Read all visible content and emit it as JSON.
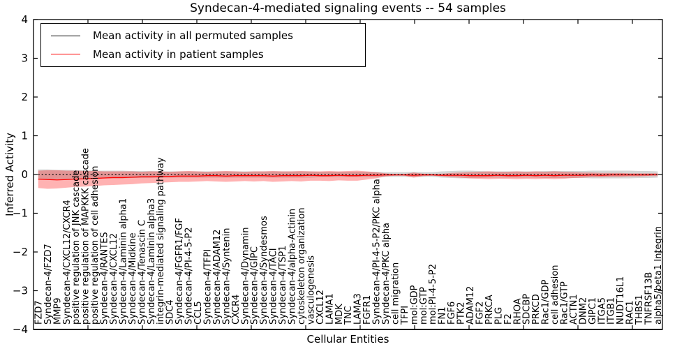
{
  "chart_data": {
    "type": "line",
    "title": "Syndecan-4-mediated signaling events -- 54 samples",
    "xlabel": "Cellular Entities",
    "ylabel": "Inferred Activity",
    "ylim": [
      -4,
      4
    ],
    "yticks": [
      -4,
      -3,
      -2,
      -1,
      0,
      1,
      2,
      3,
      4
    ],
    "grid": false,
    "legend_position": "upper left",
    "categories": [
      "FZD7",
      "Syndecan-4/FZD7",
      "MMP9",
      "Syndecan-4/CXCL12/CXCR4",
      "positive regulation of JNK cascade",
      "positive regulation of MAPKKK cascade",
      "positive regulation of cell adhesion",
      "Syndecan-4/RANTES",
      "Syndecan-4/CXCL12",
      "Syndecan-4/Laminin alpha1",
      "Syndecan-4/Midkine",
      "Syndecan-4/Tenascin C",
      "Syndecan-4/Laminin alpha3",
      "integrin-mediated signaling pathway",
      "SDC4",
      "Syndecan-4/FGFR1/FGF",
      "Syndecan-4/PI-4-5-P2",
      "CCL5",
      "Syndecan-4/TFPI",
      "Syndecan-4/ADAM12",
      "Syndecan-4/Syntenin",
      "CXCR4",
      "Syndecan-4/Dynamin",
      "Syndecan-4/GIPC",
      "Syndecan-4/Syndesmos",
      "Syndecan-4/TACI",
      "Syndecan-4/TSP1",
      "Syndecan-4/alpha-Actinin",
      "cytoskeleton organization",
      "vasculogenesis",
      "CXCL12",
      "LAMA1",
      "MDK",
      "TNC",
      "LAMA3",
      "FGFR1",
      "Syndecan-4/PI-4-5-P2/PKC alpha",
      "Syndecan-4/PKC alpha",
      "cell migration",
      "TFPI",
      "mol:GDP",
      "mol:GTP",
      "mol:PI-4-5-P2",
      "FN1",
      "FGF6",
      "PTK2",
      "ADAM12",
      "FGF2",
      "PRKCA",
      "PLG",
      "F2",
      "RHOA",
      "SDCBP",
      "PRKCD",
      "Rac1/GDP",
      "cell adhesion",
      "Rac1/GTP",
      "ACTN1",
      "DNM2",
      "GIPC1",
      "ITGA5",
      "ITGB1",
      "NUDT16L1",
      "RAC1",
      "THBS1",
      "TNFRSF13B",
      "alpha5/beta1 Integrin"
    ],
    "series": [
      {
        "name": "Mean activity in all permuted samples",
        "color": "#000000",
        "line_style": "dotted",
        "values": [
          0,
          0,
          0,
          0,
          0,
          0,
          0,
          0,
          0,
          0,
          0,
          0,
          0,
          0,
          0,
          0,
          0,
          0,
          0,
          0,
          0,
          0,
          0,
          0,
          0,
          0,
          0,
          0,
          0,
          0,
          0,
          0,
          0,
          0,
          0,
          0,
          0,
          0,
          0,
          0,
          0,
          0,
          0,
          0,
          0,
          0,
          0,
          0,
          0,
          0,
          0,
          0,
          0,
          0,
          0,
          0,
          0,
          0,
          0,
          0,
          0,
          0,
          0,
          0,
          0,
          0,
          0
        ]
      },
      {
        "name": "Mean activity in patient samples",
        "color": "#ff0000",
        "line_style": "solid",
        "values": [
          -0.12,
          -0.13,
          -0.14,
          -0.13,
          -0.12,
          -0.11,
          -0.1,
          -0.09,
          -0.08,
          -0.08,
          -0.07,
          -0.06,
          -0.06,
          -0.05,
          -0.05,
          -0.04,
          -0.04,
          -0.04,
          -0.03,
          -0.03,
          -0.04,
          -0.03,
          -0.03,
          -0.03,
          -0.03,
          -0.04,
          -0.03,
          -0.03,
          -0.03,
          -0.02,
          -0.03,
          -0.03,
          -0.02,
          -0.03,
          -0.03,
          -0.02,
          -0.02,
          -0.01,
          -0.01,
          -0.01,
          -0.02,
          -0.01,
          -0.01,
          -0.02,
          -0.02,
          -0.02,
          -0.03,
          -0.03,
          -0.03,
          -0.02,
          -0.03,
          -0.03,
          -0.02,
          -0.03,
          -0.02,
          -0.03,
          -0.02,
          -0.02,
          -0.02,
          -0.01,
          -0.02,
          -0.01,
          -0.01,
          -0.01,
          -0.01,
          -0.01,
          0.0
        ]
      }
    ],
    "bands": [
      {
        "name": "permuted samples range",
        "color": "#808080",
        "opacity": 0.32,
        "half_width": [
          0.13,
          0.13,
          0.12,
          0.12,
          0.11,
          0.11,
          0.1,
          0.1,
          0.1,
          0.1,
          0.09,
          0.09,
          0.09,
          0.08,
          0.08,
          0.08,
          0.08,
          0.08,
          0.08,
          0.08,
          0.08,
          0.08,
          0.08,
          0.08,
          0.08,
          0.08,
          0.08,
          0.08,
          0.08,
          0.08,
          0.07,
          0.07,
          0.07,
          0.07,
          0.07,
          0.07,
          0.07,
          0.06,
          0.06,
          0.06,
          0.07,
          0.06,
          0.06,
          0.08,
          0.09,
          0.1,
          0.1,
          0.09,
          0.08,
          0.08,
          0.08,
          0.08,
          0.08,
          0.08,
          0.09,
          0.09,
          0.09,
          0.09,
          0.09,
          0.1,
          0.1,
          0.1,
          0.1,
          0.1,
          0.09,
          0.09,
          0.08
        ]
      },
      {
        "name": "patient samples range",
        "color": "#ff0000",
        "opacity": 0.3,
        "upper": [
          0.1,
          0.11,
          0.11,
          0.1,
          0.1,
          0.09,
          0.09,
          0.08,
          0.08,
          0.08,
          0.08,
          0.07,
          0.08,
          0.08,
          0.07,
          0.08,
          0.09,
          0.08,
          0.07,
          0.08,
          0.09,
          0.08,
          0.07,
          0.08,
          0.08,
          0.09,
          0.08,
          0.08,
          0.09,
          0.08,
          0.08,
          0.09,
          0.08,
          0.09,
          0.1,
          0.08,
          0.06,
          0.03,
          0.01,
          0.01,
          0.05,
          0.02,
          0.01,
          0.02,
          0.04,
          0.05,
          0.06,
          0.07,
          0.08,
          0.07,
          0.07,
          0.08,
          0.07,
          0.08,
          0.07,
          0.08,
          0.07,
          0.06,
          0.05,
          0.05,
          0.04,
          0.04,
          0.04,
          0.03,
          0.03,
          0.03,
          0.03
        ],
        "lower": [
          -0.35,
          -0.37,
          -0.36,
          -0.34,
          -0.32,
          -0.31,
          -0.3,
          -0.28,
          -0.27,
          -0.26,
          -0.25,
          -0.23,
          -0.22,
          -0.21,
          -0.2,
          -0.19,
          -0.19,
          -0.18,
          -0.17,
          -0.18,
          -0.19,
          -0.18,
          -0.17,
          -0.18,
          -0.17,
          -0.19,
          -0.18,
          -0.17,
          -0.18,
          -0.16,
          -0.16,
          -0.17,
          -0.15,
          -0.16,
          -0.16,
          -0.13,
          -0.1,
          -0.05,
          -0.03,
          -0.03,
          -0.08,
          -0.04,
          -0.03,
          -0.05,
          -0.07,
          -0.08,
          -0.1,
          -0.11,
          -0.12,
          -0.11,
          -0.11,
          -0.12,
          -0.11,
          -0.12,
          -0.11,
          -0.12,
          -0.11,
          -0.09,
          -0.08,
          -0.07,
          -0.07,
          -0.06,
          -0.06,
          -0.05,
          -0.05,
          -0.04,
          -0.04
        ]
      }
    ]
  }
}
